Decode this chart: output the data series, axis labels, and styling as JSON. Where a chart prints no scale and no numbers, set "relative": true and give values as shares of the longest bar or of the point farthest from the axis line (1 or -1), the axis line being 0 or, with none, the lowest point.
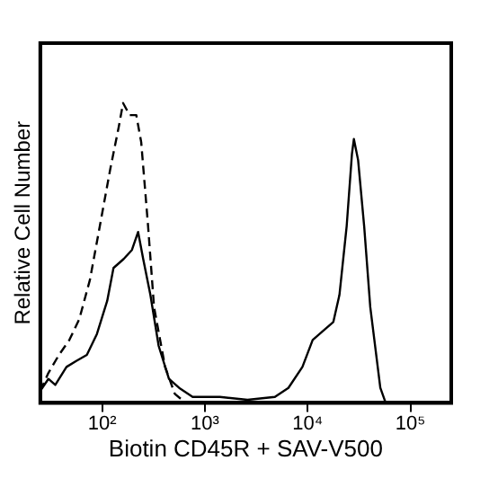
{
  "chart_data": {
    "type": "line",
    "relative": true,
    "log": "x",
    "xlabel": "Biotin CD45R + SAV-V500",
    "ylabel": "Relative Cell Number",
    "xlim": [
      25,
      250000
    ],
    "xticks": [
      {
        "value": 100,
        "label": "10²"
      },
      {
        "value": 1000,
        "label": "10³"
      },
      {
        "value": 10000,
        "label": "10⁴"
      },
      {
        "value": 100000,
        "label": "10⁵"
      }
    ],
    "grid": false,
    "legend": false,
    "marker": "none",
    "series": [
      {
        "color": "#000000",
        "line_style": "dashed",
        "x": [
          25,
          30,
          38,
          48,
          60,
          76,
          95,
          120,
          145,
          160,
          185,
          215,
          240,
          280,
          320,
          410,
          510,
          650
        ],
        "values": [
          0.04,
          0.1,
          0.16,
          0.21,
          0.28,
          0.41,
          0.59,
          0.78,
          0.92,
          1.0,
          0.96,
          0.96,
          0.87,
          0.59,
          0.32,
          0.12,
          0.03,
          0
        ]
      },
      {
        "color": "#000000",
        "line_style": "solid",
        "x": [
          25,
          30,
          35,
          45,
          56,
          71,
          89,
          112,
          129,
          162,
          195,
          224,
          251,
          295,
          355,
          447,
          562,
          760,
          1400,
          2600,
          4800,
          6500,
          8900,
          11200,
          14100,
          17800,
          20400,
          24000,
          27000,
          28200,
          31000,
          35500,
          40700,
          51000,
          57500
        ],
        "values": [
          0.04,
          0.08,
          0.06,
          0.12,
          0.14,
          0.16,
          0.23,
          0.34,
          0.45,
          0.48,
          0.51,
          0.57,
          0.48,
          0.36,
          0.19,
          0.08,
          0.05,
          0.02,
          0.02,
          0.01,
          0.02,
          0.05,
          0.12,
          0.21,
          0.24,
          0.27,
          0.36,
          0.59,
          0.83,
          0.88,
          0.81,
          0.59,
          0.32,
          0.05,
          0
        ]
      }
    ]
  }
}
